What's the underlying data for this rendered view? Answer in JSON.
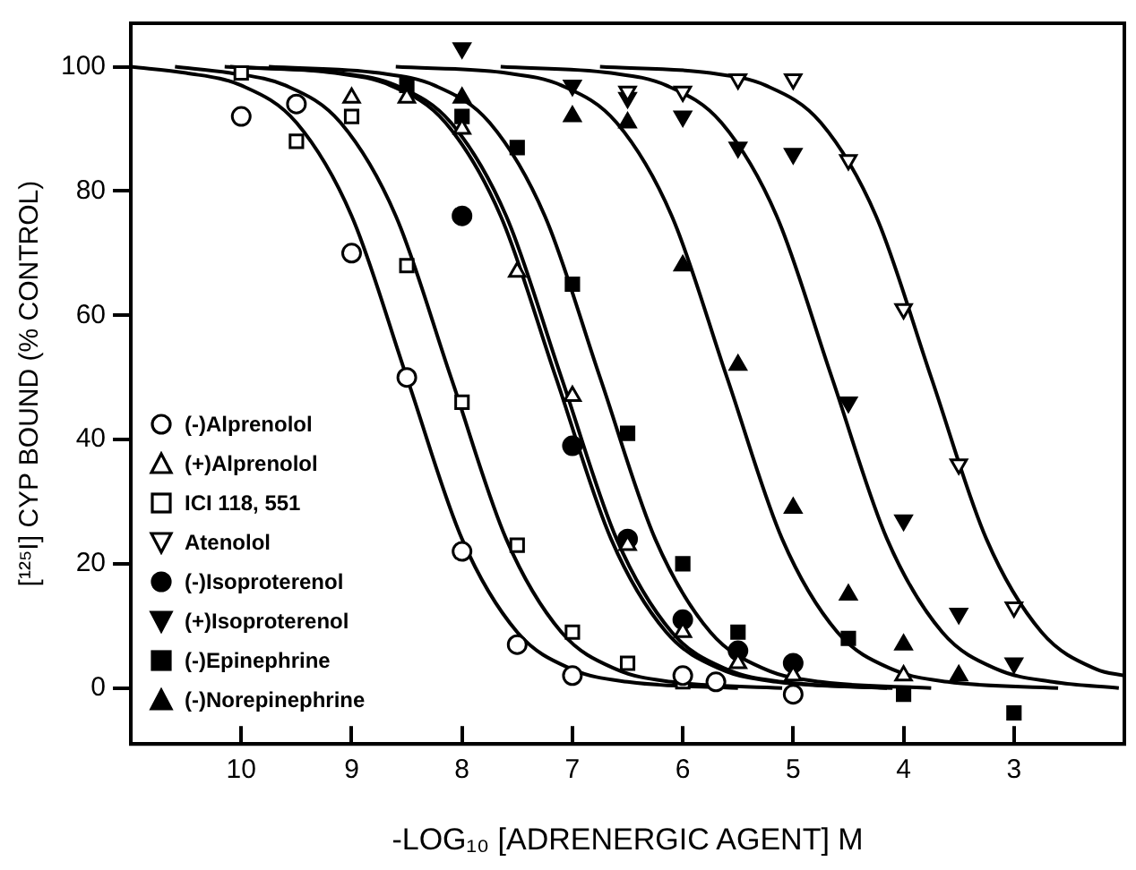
{
  "chart_data": {
    "type": "scatter",
    "xlabel": "-LOG₁₀ [ADRENERGIC AGENT] M",
    "ylabel": "[¹²⁵I] CYP BOUND (% CONTROL)",
    "xlim": [
      11,
      2
    ],
    "xticks": [
      10,
      9,
      8,
      7,
      6,
      5,
      4,
      3
    ],
    "ylim": [
      -9,
      107
    ],
    "yticks": [
      0,
      20,
      40,
      60,
      80,
      100
    ],
    "grid": false,
    "legend": "bottom left",
    "series": [
      {
        "name": "(-)Alprenolol",
        "color": "#ffffff",
        "marker": "circle",
        "x": [
          10,
          9.5,
          9,
          8.5,
          8,
          7.5,
          7,
          6,
          5.7,
          5
        ],
        "values": [
          92,
          94,
          70,
          50,
          22,
          7,
          2,
          2,
          1,
          -1
        ]
      },
      {
        "name": "(+)Alprenolol",
        "color": "#ffffff",
        "marker": "triangle",
        "x": [
          9,
          8.5,
          8,
          7.5,
          7,
          6.5,
          6,
          5.5,
          5,
          4
        ],
        "values": [
          95,
          95,
          90,
          67,
          47,
          23,
          9,
          4,
          2,
          2
        ]
      },
      {
        "name": "ICI 118, 551",
        "color": "#ffffff",
        "marker": "square",
        "x": [
          10,
          9.5,
          9,
          8.5,
          8,
          7.5,
          7,
          6.5,
          6
        ],
        "values": [
          99,
          88,
          92,
          68,
          46,
          23,
          9,
          4,
          1
        ]
      },
      {
        "name": "Atenolol",
        "color": "#ffffff",
        "marker": "triangle-down",
        "x": [
          6.5,
          6,
          5.5,
          5,
          4.5,
          4,
          3.5,
          3
        ],
        "values": [
          96,
          96,
          98,
          98,
          85,
          61,
          36,
          13
        ]
      },
      {
        "name": "(-)Isoproterenol",
        "color": "#000000",
        "marker": "circle",
        "x": [
          8,
          7,
          6.5,
          6,
          5.5,
          5
        ],
        "values": [
          76,
          39,
          24,
          11,
          6,
          4
        ]
      },
      {
        "name": "(+)Isoproterenol",
        "color": "#000000",
        "marker": "triangle-down",
        "x": [
          8,
          7,
          6.5,
          6,
          5.5,
          5,
          4.5,
          4,
          3.5,
          3
        ],
        "values": [
          103,
          97,
          95,
          92,
          87,
          86,
          46,
          27,
          12,
          4
        ]
      },
      {
        "name": "(-)Epinephrine",
        "color": "#000000",
        "marker": "square",
        "x": [
          8.5,
          8,
          7.5,
          7,
          6.5,
          6,
          5.5,
          4.5,
          4,
          3
        ],
        "values": [
          97,
          92,
          87,
          65,
          41,
          20,
          9,
          8,
          -1,
          -4
        ]
      },
      {
        "name": "(-)Norepinephrine",
        "color": "#000000",
        "marker": "triangle",
        "x": [
          8,
          7,
          6.5,
          6,
          5.5,
          5,
          4.5,
          4,
          3.5
        ],
        "values": [
          95,
          92,
          91,
          68,
          52,
          29,
          15,
          7,
          2
        ]
      },
      {
        "type": "line",
        "color": "#000000",
        "marker": "none",
        "x": [
          11,
          10.5,
          10,
          9.5,
          9,
          8.5,
          8,
          7.5,
          7,
          6.5,
          5.5
        ],
        "values": [
          100,
          99,
          97,
          91,
          76,
          50,
          24,
          9,
          3,
          1,
          0
        ]
      },
      {
        "type": "line",
        "color": "#000000",
        "marker": "none",
        "x": [
          10.6,
          10.1,
          9.6,
          9.1,
          8.6,
          8.1,
          7.6,
          7.1,
          6.6,
          6.1,
          5.1
        ],
        "values": [
          100,
          99,
          97,
          91,
          76,
          50,
          24,
          9,
          3,
          1,
          0
        ]
      },
      {
        "type": "line",
        "color": "#000000",
        "marker": "none",
        "x": [
          10.1,
          9.1,
          8.6,
          8.1,
          7.6,
          7.1,
          6.6,
          6.1,
          5.6,
          5.1,
          4.1
        ],
        "values": [
          100,
          99,
          97,
          91,
          76,
          50,
          24,
          9,
          3,
          1,
          0
        ]
      },
      {
        "type": "line",
        "color": "#000000",
        "marker": "none",
        "x": [
          10.15,
          9.15,
          8.65,
          8.15,
          7.65,
          7.15,
          6.65,
          6.15,
          5.65,
          5.15,
          4.15
        ],
        "values": [
          100,
          99,
          97,
          91,
          76,
          50,
          24,
          9,
          3,
          1,
          0
        ]
      },
      {
        "type": "line",
        "color": "#000000",
        "marker": "none",
        "x": [
          9.75,
          8.75,
          8.25,
          7.75,
          7.25,
          6.75,
          6.25,
          5.75,
          5.25,
          4.75,
          3.75
        ],
        "values": [
          100,
          99,
          97,
          91,
          76,
          50,
          24,
          9,
          3,
          1,
          0
        ]
      },
      {
        "type": "line",
        "color": "#000000",
        "marker": "none",
        "x": [
          8.6,
          7.6,
          7.1,
          6.6,
          6.1,
          5.6,
          5.1,
          4.6,
          4.1,
          3.6,
          2.6
        ],
        "values": [
          100,
          99,
          97,
          91,
          76,
          50,
          24,
          9,
          3,
          1,
          0
        ]
      },
      {
        "type": "line",
        "color": "#000000",
        "marker": "none",
        "x": [
          7.65,
          6.65,
          6.15,
          5.65,
          5.15,
          4.65,
          4.15,
          3.65,
          3.15,
          2.65,
          2.05
        ],
        "values": [
          100,
          99,
          97,
          91,
          76,
          50,
          24,
          9,
          3,
          1,
          0
        ]
      },
      {
        "type": "line",
        "color": "#000000",
        "marker": "none",
        "x": [
          6.75,
          5.75,
          5.25,
          4.75,
          4.25,
          3.75,
          3.25,
          2.75,
          2.25,
          2
        ],
        "values": [
          100,
          99,
          97,
          91,
          76,
          50,
          24,
          9,
          3,
          2
        ]
      }
    ]
  }
}
